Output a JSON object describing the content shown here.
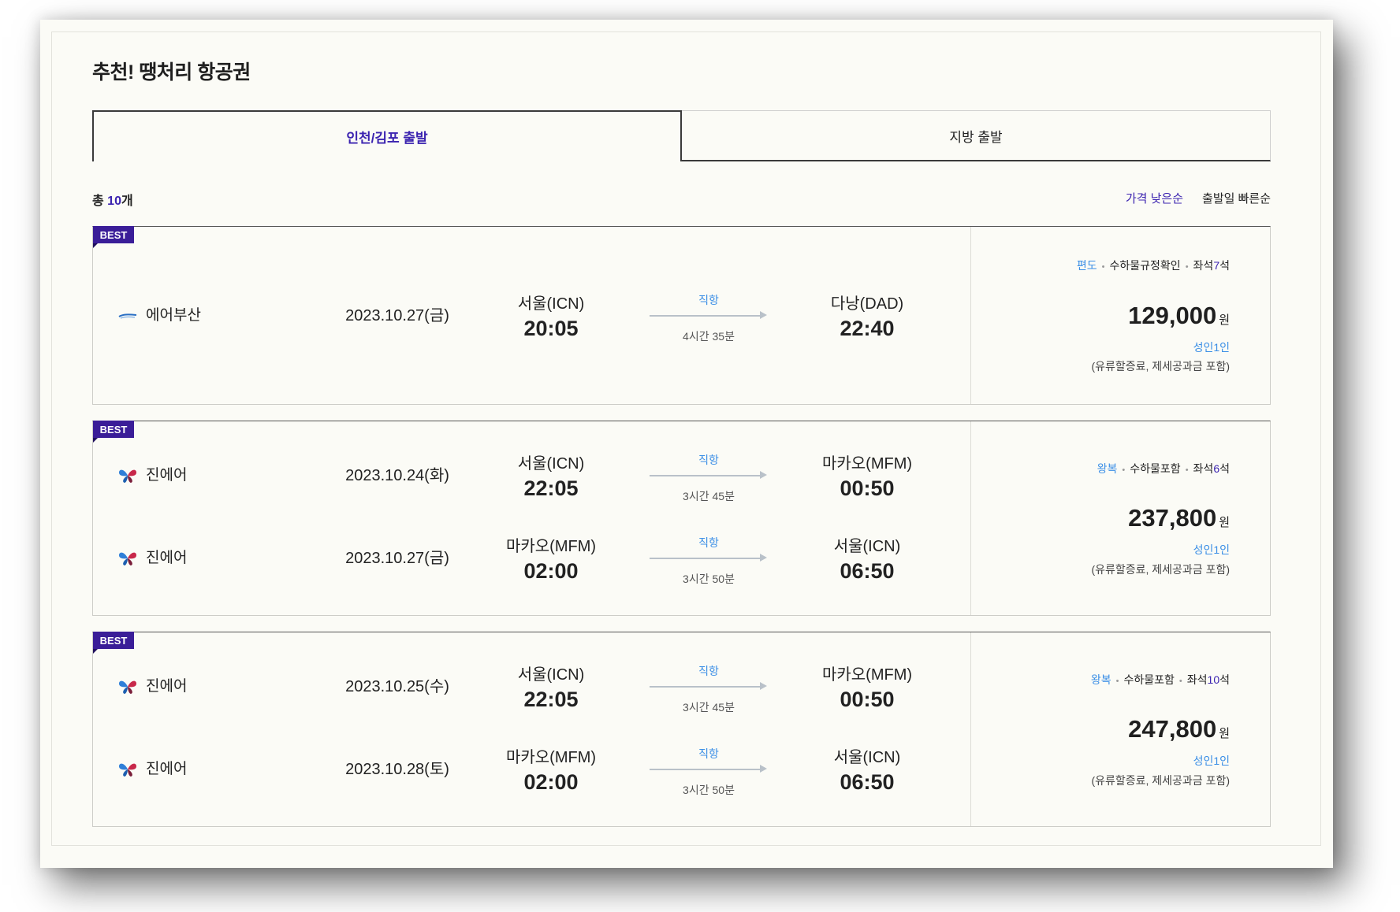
{
  "title": "추천! 땡처리 항공권",
  "tabs": [
    {
      "label": "인천/김포 출발",
      "active": true
    },
    {
      "label": "지방 출발",
      "active": false
    }
  ],
  "summary": {
    "prefix": "총 ",
    "count": "10",
    "suffix": "개"
  },
  "sort": [
    {
      "label": "가격 낮은순",
      "active": true
    },
    {
      "label": "출발일 빠른순",
      "active": false
    }
  ],
  "colors": {
    "accent_purple": "#3b23b0",
    "badge_purple": "#3a1d98",
    "link_blue": "#3a8ee6"
  },
  "flights": [
    {
      "badge": "BEST",
      "legs": [
        {
          "airline": "에어부산",
          "logo": "air-busan-logo-icon",
          "date": "2023.10.27(금)",
          "dep_city": "서울(ICN)",
          "dep_time": "20:05",
          "type": "직항",
          "duration": "4시간 35분",
          "arr_city": "다낭(DAD)",
          "arr_time": "22:40"
        }
      ],
      "price": {
        "trip_type": "편도",
        "baggage": "수하물규정확인",
        "seats_label": "좌석",
        "seats_count": "7",
        "seats_unit": "석",
        "amount": "129,000",
        "currency": "원",
        "per": "성인1인",
        "note": "(유류할증료, 제세공과금 포함)"
      }
    },
    {
      "badge": "BEST",
      "legs": [
        {
          "airline": "진에어",
          "logo": "jinair-butterfly-icon",
          "date": "2023.10.24(화)",
          "dep_city": "서울(ICN)",
          "dep_time": "22:05",
          "type": "직항",
          "duration": "3시간 45분",
          "arr_city": "마카오(MFM)",
          "arr_time": "00:50"
        },
        {
          "airline": "진에어",
          "logo": "jinair-butterfly-icon",
          "date": "2023.10.27(금)",
          "dep_city": "마카오(MFM)",
          "dep_time": "02:00",
          "type": "직항",
          "duration": "3시간 50분",
          "arr_city": "서울(ICN)",
          "arr_time": "06:50"
        }
      ],
      "price": {
        "trip_type": "왕복",
        "baggage": "수하물포함",
        "seats_label": "좌석",
        "seats_count": "6",
        "seats_unit": "석",
        "amount": "237,800",
        "currency": "원",
        "per": "성인1인",
        "note": "(유류할증료, 제세공과금 포함)"
      }
    },
    {
      "badge": "BEST",
      "legs": [
        {
          "airline": "진에어",
          "logo": "jinair-butterfly-icon",
          "date": "2023.10.25(수)",
          "dep_city": "서울(ICN)",
          "dep_time": "22:05",
          "type": "직항",
          "duration": "3시간 45분",
          "arr_city": "마카오(MFM)",
          "arr_time": "00:50"
        },
        {
          "airline": "진에어",
          "logo": "jinair-butterfly-icon",
          "date": "2023.10.28(토)",
          "dep_city": "마카오(MFM)",
          "dep_time": "02:00",
          "type": "직항",
          "duration": "3시간 50분",
          "arr_city": "서울(ICN)",
          "arr_time": "06:50"
        }
      ],
      "price": {
        "trip_type": "왕복",
        "baggage": "수하물포함",
        "seats_label": "좌석",
        "seats_count": "10",
        "seats_unit": "석",
        "amount": "247,800",
        "currency": "원",
        "per": "성인1인",
        "note": "(유류할증료, 제세공과금 포함)"
      }
    }
  ]
}
